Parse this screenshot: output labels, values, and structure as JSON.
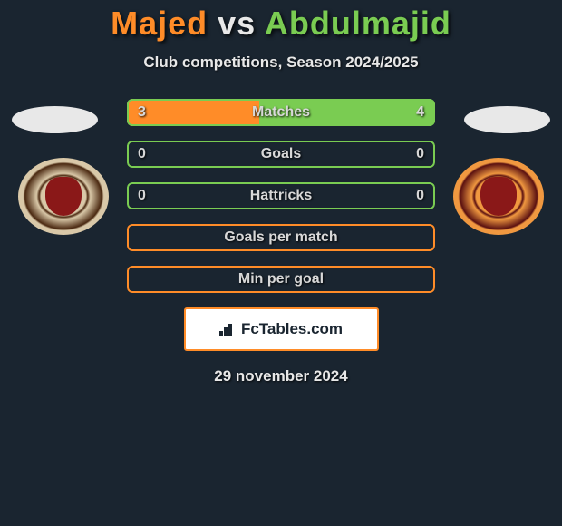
{
  "title": {
    "player1": "Majed",
    "vs": "vs",
    "player2": "Abdulmajid"
  },
  "subtitle": "Club competitions, Season 2024/2025",
  "colors": {
    "player1_accent": "#ff8c28",
    "player2_accent": "#7acc52",
    "bar_bg_empty": "#1a2530",
    "text": "#e8e8e8",
    "background": "#1a2530"
  },
  "stats": [
    {
      "label": "Matches",
      "left_value": "3",
      "right_value": "4",
      "left_pct": 42.857,
      "border_color": "#7acc52",
      "bg_color": "#7acc52",
      "fill_color": "#ff8c28"
    },
    {
      "label": "Goals",
      "left_value": "0",
      "right_value": "0",
      "left_pct": 0,
      "border_color": "#7acc52",
      "bg_color": "#1a2530",
      "fill_color": "#ff8c28"
    },
    {
      "label": "Hattricks",
      "left_value": "0",
      "right_value": "0",
      "left_pct": 0,
      "border_color": "#7acc52",
      "bg_color": "#1a2530",
      "fill_color": "#ff8c28"
    },
    {
      "label": "Goals per match",
      "left_value": "",
      "right_value": "",
      "left_pct": 0,
      "border_color": "#ff8c28",
      "bg_color": "#1a2530",
      "fill_color": "#ff8c28"
    },
    {
      "label": "Min per goal",
      "left_value": "",
      "right_value": "",
      "left_pct": 0,
      "border_color": "#ff8c28",
      "bg_color": "#1a2530",
      "fill_color": "#ff8c28"
    }
  ],
  "brand": "FcTables.com",
  "date": "29 november 2024"
}
